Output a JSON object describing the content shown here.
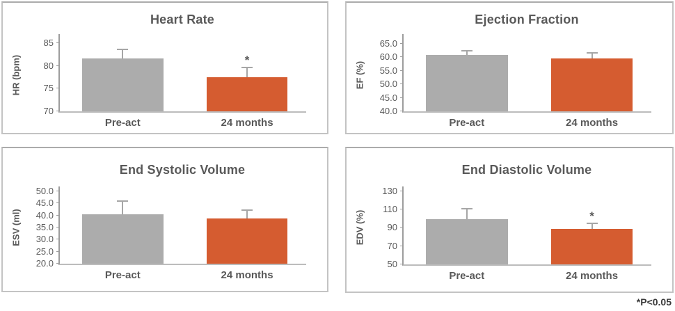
{
  "figure": {
    "footnote": "*P<0.05"
  },
  "colors": {
    "bar_gray": "#ACACAC",
    "bar_orange": "#D55C30",
    "axis_line": "#9D9D9D",
    "error_bar": "#A6A6A6",
    "text_gray": "#595959"
  },
  "chart_data": [
    {
      "type": "bar",
      "title": "Heart Rate",
      "ylabel": "HR (bpm)",
      "xlabel": "",
      "categories": [
        "Pre-act",
        "24 months"
      ],
      "values": [
        81.6,
        77.5
      ],
      "error_top": [
        83.7,
        79.6
      ],
      "significant": [
        false,
        true
      ],
      "yticks": [
        70,
        75,
        80,
        85
      ],
      "tick_decimals": 0,
      "ylim": [
        70,
        87
      ],
      "grid": false,
      "legend": "none",
      "bar_colors": [
        "#ACACAC",
        "#D55C30"
      ]
    },
    {
      "type": "bar",
      "title": "Ejection Fraction",
      "ylabel": "EF (%)",
      "xlabel": "",
      "categories": [
        "Pre-act",
        "24 months"
      ],
      "values": [
        60.8,
        59.5
      ],
      "error_top": [
        62.3,
        61.5
      ],
      "significant": [
        false,
        false
      ],
      "yticks": [
        40,
        45,
        50,
        55,
        60,
        65
      ],
      "tick_decimals": 1,
      "ylim": [
        40,
        68.5
      ],
      "grid": false,
      "legend": "none",
      "bar_colors": [
        "#ACACAC",
        "#D55C30"
      ]
    },
    {
      "type": "bar",
      "title": "End Systolic Volume",
      "ylabel": "ESV (ml)",
      "xlabel": "",
      "categories": [
        "Pre-act",
        "24 months"
      ],
      "values": [
        40.4,
        38.6
      ],
      "error_top": [
        45.9,
        42.1
      ],
      "significant": [
        false,
        false
      ],
      "yticks": [
        20,
        25,
        30,
        35,
        40,
        45,
        50
      ],
      "tick_decimals": 1,
      "ylim": [
        20,
        52
      ],
      "grid": false,
      "legend": "none",
      "bar_colors": [
        "#ACACAC",
        "#D55C30"
      ]
    },
    {
      "type": "bar",
      "title": "End Diastolic Volume",
      "ylabel": "EDV (%)",
      "xlabel": "",
      "categories": [
        "Pre-act",
        "24 months"
      ],
      "values": [
        99,
        88.5
      ],
      "error_top": [
        111,
        95
      ],
      "significant": [
        false,
        true
      ],
      "yticks": [
        50,
        70,
        90,
        110,
        130
      ],
      "tick_decimals": 0,
      "ylim": [
        50,
        135
      ],
      "grid": false,
      "legend": "none",
      "bar_colors": [
        "#ACACAC",
        "#D55C30"
      ]
    }
  ]
}
